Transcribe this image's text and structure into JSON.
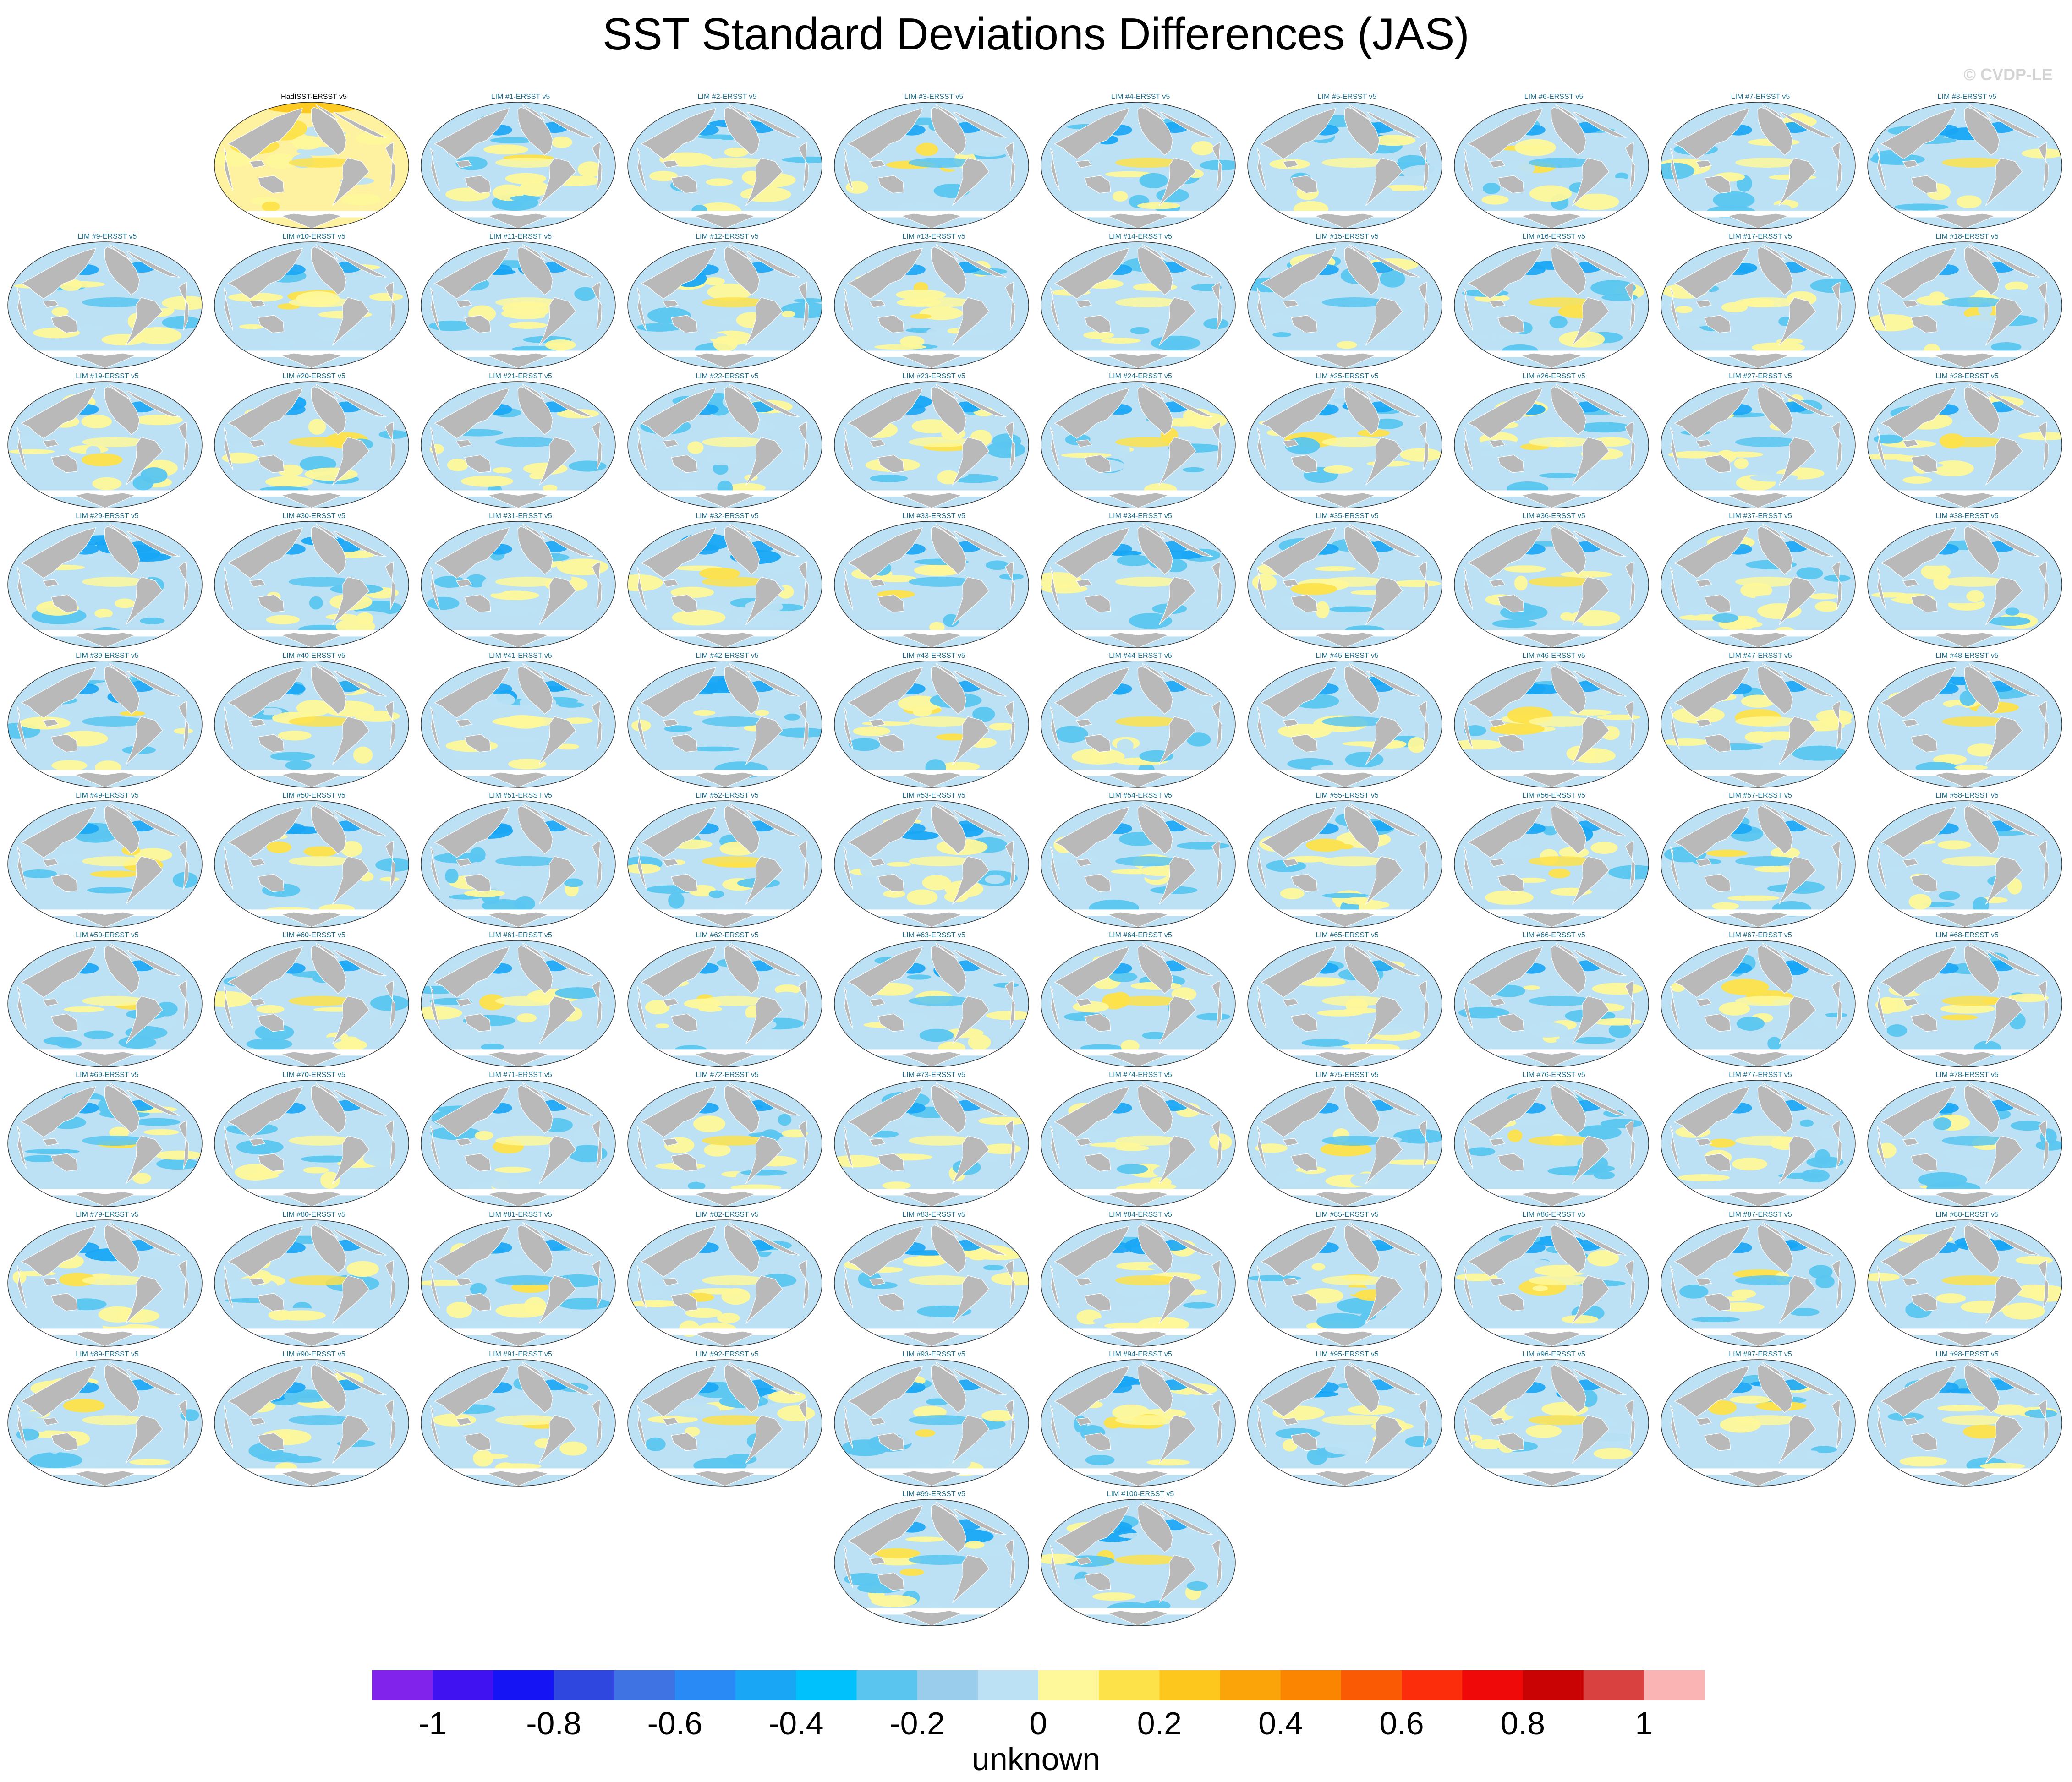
{
  "title": "SST Standard Deviations Differences (JAS)",
  "watermark": "© CVDP-LE",
  "panel_labels": [
    "HadISST-ERSST v5",
    "LIM #1-ERSST v5",
    "LIM #2-ERSST v5",
    "LIM #3-ERSST v5",
    "LIM #4-ERSST v5",
    "LIM #5-ERSST v5",
    "LIM #6-ERSST v5",
    "LIM #7-ERSST v5",
    "LIM #8-ERSST v5",
    "LIM #9-ERSST v5",
    "LIM #10-ERSST v5",
    "LIM #11-ERSST v5",
    "LIM #12-ERSST v5",
    "LIM #13-ERSST v5",
    "LIM #14-ERSST v5",
    "LIM #15-ERSST v5",
    "LIM #16-ERSST v5",
    "LIM #17-ERSST v5",
    "LIM #18-ERSST v5",
    "LIM #19-ERSST v5",
    "LIM #20-ERSST v5",
    "LIM #21-ERSST v5",
    "LIM #22-ERSST v5",
    "LIM #23-ERSST v5",
    "LIM #24-ERSST v5",
    "LIM #25-ERSST v5",
    "LIM #26-ERSST v5",
    "LIM #27-ERSST v5",
    "LIM #28-ERSST v5",
    "LIM #29-ERSST v5",
    "LIM #30-ERSST v5",
    "LIM #31-ERSST v5",
    "LIM #32-ERSST v5",
    "LIM #33-ERSST v5",
    "LIM #34-ERSST v5",
    "LIM #35-ERSST v5",
    "LIM #36-ERSST v5",
    "LIM #37-ERSST v5",
    "LIM #38-ERSST v5",
    "LIM #39-ERSST v5",
    "LIM #40-ERSST v5",
    "LIM #41-ERSST v5",
    "LIM #42-ERSST v5",
    "LIM #43-ERSST v5",
    "LIM #44-ERSST v5",
    "LIM #45-ERSST v5",
    "LIM #46-ERSST v5",
    "LIM #47-ERSST v5",
    "LIM #48-ERSST v5",
    "LIM #49-ERSST v5",
    "LIM #50-ERSST v5",
    "LIM #51-ERSST v5",
    "LIM #52-ERSST v5",
    "LIM #53-ERSST v5",
    "LIM #54-ERSST v5",
    "LIM #55-ERSST v5",
    "LIM #56-ERSST v5",
    "LIM #57-ERSST v5",
    "LIM #58-ERSST v5",
    "LIM #59-ERSST v5",
    "LIM #60-ERSST v5",
    "LIM #61-ERSST v5",
    "LIM #62-ERSST v5",
    "LIM #63-ERSST v5",
    "LIM #64-ERSST v5",
    "LIM #65-ERSST v5",
    "LIM #66-ERSST v5",
    "LIM #67-ERSST v5",
    "LIM #68-ERSST v5",
    "LIM #69-ERSST v5",
    "LIM #70-ERSST v5",
    "LIM #71-ERSST v5",
    "LIM #72-ERSST v5",
    "LIM #73-ERSST v5",
    "LIM #74-ERSST v5",
    "LIM #75-ERSST v5",
    "LIM #76-ERSST v5",
    "LIM #77-ERSST v5",
    "LIM #78-ERSST v5",
    "LIM #79-ERSST v5",
    "LIM #80-ERSST v5",
    "LIM #81-ERSST v5",
    "LIM #82-ERSST v5",
    "LIM #83-ERSST v5",
    "LIM #84-ERSST v5",
    "LIM #85-ERSST v5",
    "LIM #86-ERSST v5",
    "LIM #87-ERSST v5",
    "LIM #88-ERSST v5",
    "LIM #89-ERSST v5",
    "LIM #90-ERSST v5",
    "LIM #91-ERSST v5",
    "LIM #92-ERSST v5",
    "LIM #93-ERSST v5",
    "LIM #94-ERSST v5",
    "LIM #95-ERSST v5",
    "LIM #96-ERSST v5",
    "LIM #97-ERSST v5",
    "LIM #98-ERSST v5",
    "LIM #99-ERSST v5",
    "LIM #100-ERSST v5"
  ],
  "colorbar": {
    "levels": [
      -1.1,
      -1.0,
      -0.9,
      -0.8,
      -0.7,
      -0.6,
      -0.5,
      -0.4,
      -0.3,
      -0.2,
      -0.1,
      0,
      0.1,
      0.2,
      0.3,
      0.4,
      0.5,
      0.6,
      0.7,
      0.8,
      0.9,
      1.0,
      1.1
    ],
    "colors": [
      "#8123ea",
      "#4012f2",
      "#1414f5",
      "#2f47de",
      "#3f72e2",
      "#2a8af5",
      "#18a6f5",
      "#00c1fb",
      "#5ac6f0",
      "#99cdeb",
      "#bce1f4",
      "#fef89a",
      "#fde24a",
      "#fdc71e",
      "#fba40a",
      "#fb8400",
      "#fb5a05",
      "#fb2d0a",
      "#ef0909",
      "#c90303",
      "#d94141",
      "#fbb4b4"
    ],
    "tick_labels": [
      "-1",
      "-0.8",
      "-0.6",
      "-0.4",
      "-0.2",
      "0",
      "0.2",
      "0.4",
      "0.6",
      "0.8",
      "1"
    ],
    "tick_values": [
      -1,
      -0.8,
      -0.6,
      -0.4,
      -0.2,
      0,
      0.2,
      0.4,
      0.6,
      0.8,
      1
    ],
    "label": "unknown"
  },
  "map_colors": {
    "land": "#b9b9b9",
    "ocean_base": "#bce1f4",
    "negative_strong": "#5ac6f0",
    "negative_stronger": "#18a6f5",
    "positive_weak": "#fef89a",
    "positive": "#fde24a",
    "positive_strong": "#fdc71e"
  }
}
